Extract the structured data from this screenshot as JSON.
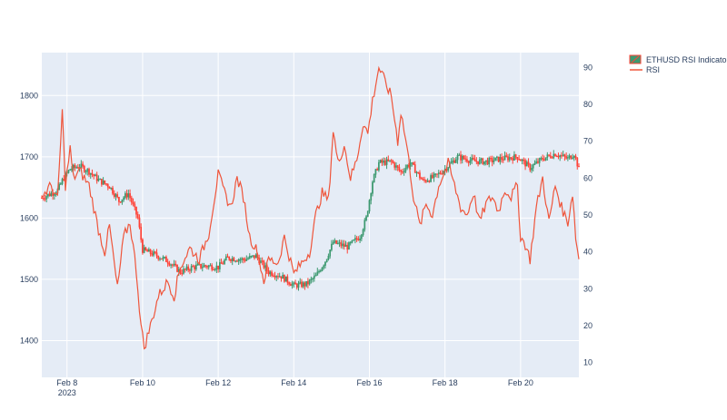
{
  "chart_data": {
    "type": "line",
    "title": "",
    "xlabel": "",
    "ylabel": "",
    "y2label": "",
    "x_tick_labels": [
      "Feb 8",
      "Feb 10",
      "Feb 12",
      "Feb 14",
      "Feb 16",
      "Feb 18",
      "Feb 20"
    ],
    "x_tick_sublabel": "2023",
    "x_range": [
      "2023-02-07 08:00",
      "2023-02-21 13:00"
    ],
    "y_ticks": [
      1400,
      1500,
      1600,
      1700,
      1800
    ],
    "y_range": [
      1340,
      1870
    ],
    "y2_ticks": [
      10,
      20,
      30,
      40,
      50,
      60,
      70,
      80,
      90
    ],
    "y2_range": [
      6,
      94
    ],
    "grid": true,
    "legend_position": "top-right",
    "legend": [
      "ETHUSD RSI Indicator",
      "RSI"
    ],
    "colors": {
      "increasing": "#3d9970",
      "decreasing": "#ff4136",
      "rsi": "#ef553b",
      "plot_bg": "#e5ecf6",
      "grid": "#ffffff"
    },
    "series": [
      {
        "name": "ETHUSD RSI Indicator",
        "kind": "candlestick",
        "interval": "1h",
        "anchors": [
          [
            "2023-02-07 08:00",
            1633
          ],
          [
            "2023-02-07 14:00",
            1640
          ],
          [
            "2023-02-07 18:00",
            1645
          ],
          [
            "2023-02-07 22:00",
            1666
          ],
          [
            "2023-02-08 02:00",
            1680
          ],
          [
            "2023-02-08 08:00",
            1685
          ],
          [
            "2023-02-08 14:00",
            1676
          ],
          [
            "2023-02-08 20:00",
            1662
          ],
          [
            "2023-02-09 03:00",
            1652
          ],
          [
            "2023-02-09 09:00",
            1628
          ],
          [
            "2023-02-09 15:00",
            1640
          ],
          [
            "2023-02-09 21:00",
            1600
          ],
          [
            "2023-02-10 00:00",
            1548
          ],
          [
            "2023-02-10 08:00",
            1540
          ],
          [
            "2023-02-10 16:00",
            1530
          ],
          [
            "2023-02-11 00:00",
            1512
          ],
          [
            "2023-02-11 08:00",
            1520
          ],
          [
            "2023-02-11 16:00",
            1522
          ],
          [
            "2023-02-12 00:00",
            1520
          ],
          [
            "2023-02-12 06:00",
            1535
          ],
          [
            "2023-02-12 16:00",
            1532
          ],
          [
            "2023-02-13 00:00",
            1538
          ],
          [
            "2023-02-13 08:00",
            1512
          ],
          [
            "2023-02-13 16:00",
            1505
          ],
          [
            "2023-02-14 00:00",
            1490
          ],
          [
            "2023-02-14 08:00",
            1492
          ],
          [
            "2023-02-14 14:00",
            1505
          ],
          [
            "2023-02-14 20:00",
            1530
          ],
          [
            "2023-02-15 01:00",
            1560
          ],
          [
            "2023-02-15 10:00",
            1553
          ],
          [
            "2023-02-15 18:00",
            1570
          ],
          [
            "2023-02-15 22:00",
            1600
          ],
          [
            "2023-02-16 02:00",
            1660
          ],
          [
            "2023-02-16 06:00",
            1690
          ],
          [
            "2023-02-16 14:00",
            1692
          ],
          [
            "2023-02-16 20:00",
            1675
          ],
          [
            "2023-02-17 02:00",
            1690
          ],
          [
            "2023-02-17 10:00",
            1660
          ],
          [
            "2023-02-17 18:00",
            1668
          ],
          [
            "2023-02-18 00:00",
            1680
          ],
          [
            "2023-02-18 08:00",
            1700
          ],
          [
            "2023-02-18 18:00",
            1693
          ],
          [
            "2023-02-19 02:00",
            1692
          ],
          [
            "2023-02-19 12:00",
            1697
          ],
          [
            "2023-02-19 22:00",
            1700
          ],
          [
            "2023-02-20 06:00",
            1682
          ],
          [
            "2023-02-20 14:00",
            1697
          ],
          [
            "2023-02-20 22:00",
            1705
          ],
          [
            "2023-02-21 06:00",
            1697
          ],
          [
            "2023-02-21 10:00",
            1705
          ],
          [
            "2023-02-21 13:00",
            1680
          ]
        ]
      },
      {
        "name": "RSI",
        "kind": "line",
        "axis": "y2",
        "anchors": [
          [
            "2023-02-07 08:00",
            55
          ],
          [
            "2023-02-07 14:00",
            58
          ],
          [
            "2023-02-07 18:00",
            54
          ],
          [
            "2023-02-07 21:00",
            78
          ],
          [
            "2023-02-07 23:00",
            58
          ],
          [
            "2023-02-08 02:00",
            68
          ],
          [
            "2023-02-08 04:00",
            60
          ],
          [
            "2023-02-08 08:00",
            62
          ],
          [
            "2023-02-08 14:00",
            58
          ],
          [
            "2023-02-08 20:00",
            46
          ],
          [
            "2023-02-09 00:00",
            40
          ],
          [
            "2023-02-09 03:00",
            47
          ],
          [
            "2023-02-09 08:00",
            30
          ],
          [
            "2023-02-09 12:00",
            44
          ],
          [
            "2023-02-09 16:00",
            48
          ],
          [
            "2023-02-09 20:00",
            35
          ],
          [
            "2023-02-09 23:00",
            20
          ],
          [
            "2023-02-10 01:00",
            14
          ],
          [
            "2023-02-10 05:00",
            20
          ],
          [
            "2023-02-10 10:00",
            28
          ],
          [
            "2023-02-10 16:00",
            32
          ],
          [
            "2023-02-10 20:00",
            28
          ],
          [
            "2023-02-11 00:00",
            36
          ],
          [
            "2023-02-11 06:00",
            41
          ],
          [
            "2023-02-11 12:00",
            38
          ],
          [
            "2023-02-11 18:00",
            45
          ],
          [
            "2023-02-12 00:00",
            61
          ],
          [
            "2023-02-12 04:00",
            56
          ],
          [
            "2023-02-12 08:00",
            52
          ],
          [
            "2023-02-12 12:00",
            60
          ],
          [
            "2023-02-12 16:00",
            55
          ],
          [
            "2023-02-12 20:00",
            44
          ],
          [
            "2023-02-13 01:00",
            40
          ],
          [
            "2023-02-13 05:00",
            32
          ],
          [
            "2023-02-13 08:00",
            38
          ],
          [
            "2023-02-13 14:00",
            37
          ],
          [
            "2023-02-13 18:00",
            44
          ],
          [
            "2023-02-14 00:00",
            34
          ],
          [
            "2023-02-14 05:00",
            37
          ],
          [
            "2023-02-14 10:00",
            40
          ],
          [
            "2023-02-14 14:00",
            50
          ],
          [
            "2023-02-14 18:00",
            56
          ],
          [
            "2023-02-14 22:00",
            54
          ],
          [
            "2023-02-15 01:00",
            73
          ],
          [
            "2023-02-15 04:00",
            64
          ],
          [
            "2023-02-15 08:00",
            69
          ],
          [
            "2023-02-15 12:00",
            60
          ],
          [
            "2023-02-15 16:00",
            65
          ],
          [
            "2023-02-15 20:00",
            75
          ],
          [
            "2023-02-15 23:00",
            72
          ],
          [
            "2023-02-16 02:00",
            81
          ],
          [
            "2023-02-16 06:00",
            90
          ],
          [
            "2023-02-16 10:00",
            86
          ],
          [
            "2023-02-16 14:00",
            82
          ],
          [
            "2023-02-16 18:00",
            70
          ],
          [
            "2023-02-16 20:00",
            78
          ],
          [
            "2023-02-17 00:00",
            68
          ],
          [
            "2023-02-17 04:00",
            55
          ],
          [
            "2023-02-17 08:00",
            47
          ],
          [
            "2023-02-17 12:00",
            53
          ],
          [
            "2023-02-17 16:00",
            50
          ],
          [
            "2023-02-17 20:00",
            58
          ],
          [
            "2023-02-18 02:00",
            64
          ],
          [
            "2023-02-18 06:00",
            58
          ],
          [
            "2023-02-18 10:00",
            52
          ],
          [
            "2023-02-18 14:00",
            50
          ],
          [
            "2023-02-18 18:00",
            56
          ],
          [
            "2023-02-18 22:00",
            48
          ],
          [
            "2023-02-19 02:00",
            53
          ],
          [
            "2023-02-19 06:00",
            55
          ],
          [
            "2023-02-19 10:00",
            51
          ],
          [
            "2023-02-19 14:00",
            57
          ],
          [
            "2023-02-19 18:00",
            55
          ],
          [
            "2023-02-19 22:00",
            58
          ],
          [
            "2023-02-20 00:00",
            44
          ],
          [
            "2023-02-20 03:00",
            42
          ],
          [
            "2023-02-20 06:00",
            38
          ],
          [
            "2023-02-20 10:00",
            52
          ],
          [
            "2023-02-20 14:00",
            60
          ],
          [
            "2023-02-20 18:00",
            48
          ],
          [
            "2023-02-20 22:00",
            58
          ],
          [
            "2023-02-21 02:00",
            52
          ],
          [
            "2023-02-21 06:00",
            48
          ],
          [
            "2023-02-21 09:00",
            56
          ],
          [
            "2023-02-21 11:00",
            44
          ],
          [
            "2023-02-21 13:00",
            38
          ]
        ]
      }
    ]
  }
}
